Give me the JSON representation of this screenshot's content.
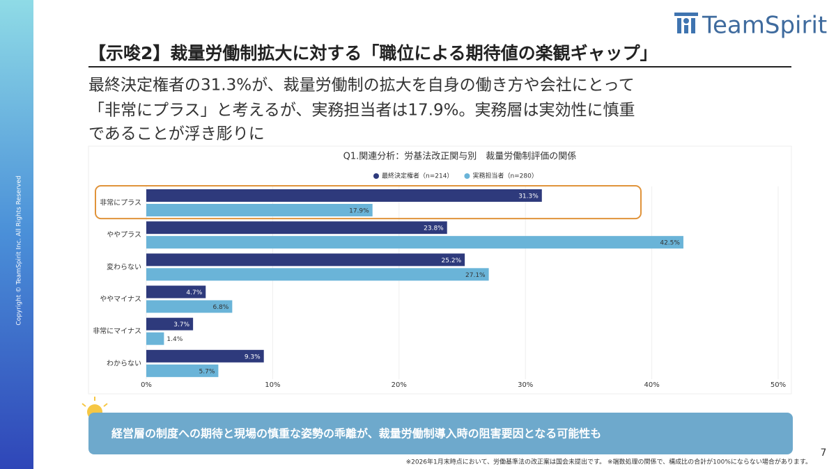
{
  "slide": {
    "logo": "TeamSpirit",
    "title": "【示唆2】裁量労働制拡大に対する「職位による期待値の楽観ギャップ」",
    "subtitle": [
      "最終決定権者の31.3%が、裁量労働制の拡大を自身の働き方や会社にとって",
      "「非常にプラス」と考えるが、実務担当者は17.9%。実務層は実効性に慎重",
      "であることが浮き彫りに"
    ],
    "copyright": "Copyright © TeamSpirit Inc. All Rights Reserved",
    "callout": "経営層の制度への期待と現場の慎重な姿勢の乖離が、裁量労働制導入時の阻害要因となる可能性も",
    "footnote": "※2026年1月末時点において、労働基準法の改正案は国会未提出です。 ※端数処理の関係で、構成比の合計が100%にならない場合があります。",
    "page_number": "7"
  },
  "chart_data": {
    "type": "bar",
    "orientation": "horizontal",
    "title": "Q1.関連分析：労基法改正関与別　裁量労働制評価の関係",
    "categories": [
      "非常にプラス",
      "ややプラス",
      "変わらない",
      "ややマイナス",
      "非常にマイナス",
      "わからない"
    ],
    "series": [
      {
        "name": "最終決定権者（n=214）",
        "color": "#2e3a7c",
        "values": [
          31.3,
          23.8,
          25.2,
          4.7,
          3.7,
          9.3
        ],
        "value_labels": [
          "31.3%",
          "23.8%",
          "25.2%",
          "4.7%",
          "3.7%",
          "9.3%"
        ]
      },
      {
        "name": "実務担当者（n=280）",
        "color": "#6ab4d8",
        "values": [
          17.9,
          42.5,
          27.1,
          6.8,
          1.4,
          5.7
        ],
        "value_labels": [
          "17.9%",
          "42.5%",
          "27.1%",
          "6.8%",
          "1.4%",
          "5.7%"
        ]
      }
    ],
    "xlim": [
      0,
      50
    ],
    "xticks": [
      {
        "value": 0,
        "label": "0%"
      },
      {
        "value": 10,
        "label": "10%"
      },
      {
        "value": 20,
        "label": "20%"
      },
      {
        "value": 30,
        "label": "30%"
      },
      {
        "value": 40,
        "label": "40%"
      },
      {
        "value": 50,
        "label": "50%"
      }
    ],
    "grid": true,
    "legend": "top"
  }
}
